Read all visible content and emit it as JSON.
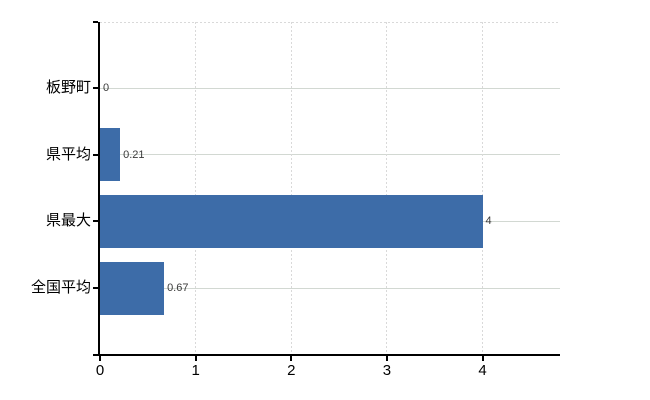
{
  "chart_data": {
    "type": "bar",
    "orientation": "horizontal",
    "title": "",
    "categories": [
      "板野町",
      "県平均",
      "県最大",
      "全国平均"
    ],
    "values": [
      0,
      0.21,
      4,
      0.67
    ],
    "value_labels": [
      "0",
      "0.21",
      "4",
      "0.67"
    ],
    "x_tick_labels": [
      "0",
      "1",
      "2",
      "3",
      "4"
    ],
    "x_tick_values": [
      0,
      1,
      2,
      3,
      4
    ],
    "xlim": [
      0,
      4.81
    ],
    "ylabel": "",
    "xlabel": "",
    "grid": "horizontal solid at category centers, vertical dashed at integer ticks, dashed top border",
    "legend_position": "none",
    "colors": {
      "bar": "#3d6ca8",
      "axis": "#000000",
      "h_gridline": "#d2d8d2",
      "v_gridline": "#d9d9d9",
      "top_border": "#d9d9d9",
      "category_label": "#000000",
      "x_tick_label": "#000000",
      "value_label": "#3a3a3a",
      "background": "#ffffff"
    }
  }
}
